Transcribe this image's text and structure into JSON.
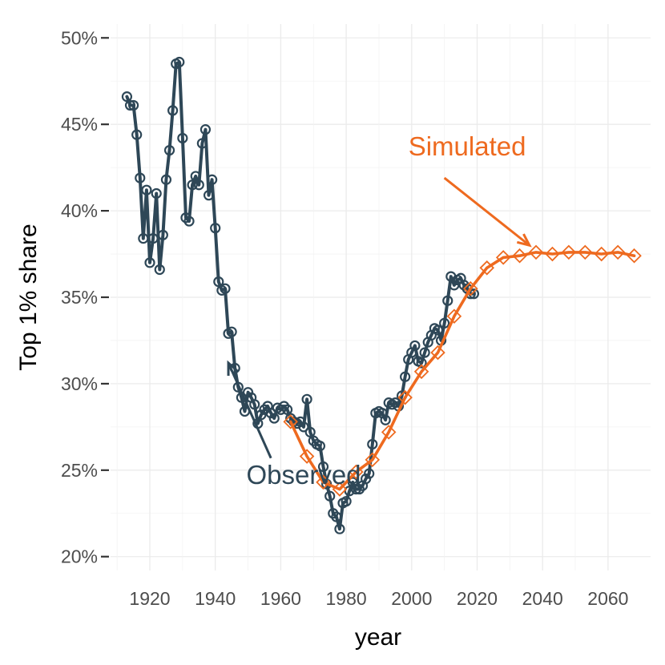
{
  "chart_data": {
    "type": "line",
    "title": "",
    "xlabel": "year",
    "ylabel": "Top 1% share",
    "xlim": [
      1908,
      2073
    ],
    "ylim": [
      19.2,
      50.8
    ],
    "x_ticks": [
      1920,
      1940,
      1960,
      1980,
      2000,
      2020,
      2040,
      2060
    ],
    "y_ticks": [
      20,
      25,
      30,
      35,
      40,
      45,
      50
    ],
    "y_tick_labels": [
      "20%",
      "25%",
      "30%",
      "35%",
      "40%",
      "45%",
      "50%"
    ],
    "x_tick_labels": [
      "1920",
      "1940",
      "1960",
      "1980",
      "2000",
      "2020",
      "2040",
      "2060"
    ],
    "grid": true,
    "legend": "none",
    "series": [
      {
        "name": "Observed",
        "color": "#2e4757",
        "marker": "circle",
        "points": [
          [
            1913,
            46.6
          ],
          [
            1914,
            46.1
          ],
          [
            1915,
            46.1
          ],
          [
            1916,
            44.4
          ],
          [
            1917,
            41.9
          ],
          [
            1918,
            38.4
          ],
          [
            1919,
            41.2
          ],
          [
            1920,
            37.0
          ],
          [
            1921,
            38.4
          ],
          [
            1922,
            41.0
          ],
          [
            1923,
            36.6
          ],
          [
            1924,
            38.6
          ],
          [
            1925,
            41.8
          ],
          [
            1926,
            43.5
          ],
          [
            1927,
            45.8
          ],
          [
            1928,
            48.5
          ],
          [
            1929,
            48.6
          ],
          [
            1930,
            44.2
          ],
          [
            1931,
            39.6
          ],
          [
            1932,
            39.4
          ],
          [
            1933,
            41.5
          ],
          [
            1934,
            42.0
          ],
          [
            1935,
            41.5
          ],
          [
            1936,
            43.9
          ],
          [
            1937,
            44.7
          ],
          [
            1938,
            40.9
          ],
          [
            1939,
            41.8
          ],
          [
            1940,
            39.0
          ],
          [
            1941,
            35.9
          ],
          [
            1942,
            35.4
          ],
          [
            1943,
            35.5
          ],
          [
            1944,
            32.9
          ],
          [
            1945,
            33.0
          ],
          [
            1946,
            30.9
          ],
          [
            1947,
            29.8
          ],
          [
            1948,
            29.2
          ],
          [
            1949,
            28.4
          ],
          [
            1950,
            29.5
          ],
          [
            1951,
            29.2
          ],
          [
            1952,
            28.8
          ],
          [
            1953,
            27.7
          ],
          [
            1954,
            28.2
          ],
          [
            1955,
            28.5
          ],
          [
            1956,
            28.7
          ],
          [
            1957,
            28.3
          ],
          [
            1958,
            28.0
          ],
          [
            1959,
            28.6
          ],
          [
            1960,
            28.5
          ],
          [
            1961,
            28.7
          ],
          [
            1962,
            28.5
          ],
          [
            1963,
            28.0
          ],
          [
            1964,
            27.8
          ],
          [
            1965,
            27.7
          ],
          [
            1966,
            27.8
          ],
          [
            1967,
            27.5
          ],
          [
            1968,
            29.1
          ],
          [
            1969,
            27.2
          ],
          [
            1970,
            26.7
          ],
          [
            1971,
            26.5
          ],
          [
            1972,
            26.4
          ],
          [
            1973,
            25.2
          ],
          [
            1974,
            24.2
          ],
          [
            1975,
            23.5
          ],
          [
            1976,
            22.5
          ],
          [
            1977,
            22.3
          ],
          [
            1978,
            21.6
          ],
          [
            1979,
            23.1
          ],
          [
            1980,
            23.2
          ],
          [
            1981,
            23.8
          ],
          [
            1982,
            24.3
          ],
          [
            1983,
            23.9
          ],
          [
            1984,
            23.9
          ],
          [
            1985,
            24.1
          ],
          [
            1986,
            24.5
          ],
          [
            1987,
            24.8
          ],
          [
            1988,
            26.5
          ],
          [
            1989,
            28.3
          ],
          [
            1990,
            28.4
          ],
          [
            1991,
            28.3
          ],
          [
            1992,
            27.9
          ],
          [
            1993,
            28.9
          ],
          [
            1994,
            28.8
          ],
          [
            1995,
            28.9
          ],
          [
            1996,
            28.7
          ],
          [
            1997,
            29.3
          ],
          [
            1998,
            30.4
          ],
          [
            1999,
            31.4
          ],
          [
            2000,
            31.8
          ],
          [
            2001,
            32.2
          ],
          [
            2002,
            31.3
          ],
          [
            2003,
            31.2
          ],
          [
            2004,
            31.8
          ],
          [
            2005,
            32.4
          ],
          [
            2006,
            32.8
          ],
          [
            2007,
            33.2
          ],
          [
            2008,
            33.1
          ],
          [
            2009,
            32.5
          ],
          [
            2010,
            33.5
          ],
          [
            2011,
            34.8
          ],
          [
            2012,
            36.2
          ],
          [
            2013,
            35.7
          ],
          [
            2014,
            36.0
          ],
          [
            2015,
            36.1
          ],
          [
            2016,
            35.7
          ],
          [
            2017,
            35.5
          ],
          [
            2018,
            35.2
          ],
          [
            2019,
            35.2
          ]
        ]
      },
      {
        "name": "Simulated",
        "color": "#ee6a1f",
        "marker": "diamond",
        "points": [
          [
            1963,
            27.8
          ],
          [
            1968,
            25.8
          ],
          [
            1973,
            24.3
          ],
          [
            1978,
            23.9
          ],
          [
            1983,
            24.9
          ],
          [
            1988,
            25.6
          ],
          [
            1993,
            27.2
          ],
          [
            1998,
            29.2
          ],
          [
            2003,
            30.7
          ],
          [
            2008,
            31.8
          ],
          [
            2013,
            33.9
          ],
          [
            2018,
            35.5
          ],
          [
            2023,
            36.7
          ],
          [
            2028,
            37.3
          ],
          [
            2033,
            37.4
          ],
          [
            2038,
            37.6
          ],
          [
            2043,
            37.5
          ],
          [
            2048,
            37.6
          ],
          [
            2053,
            37.6
          ],
          [
            2058,
            37.5
          ],
          [
            2063,
            37.6
          ],
          [
            2068,
            37.4
          ]
        ]
      }
    ],
    "annotations": [
      {
        "text": "Simulated",
        "color": "#ee6a1f",
        "label_at": [
          1999,
          43.2
        ],
        "arrow_from": [
          2010,
          41.9
        ],
        "arrow_to": [
          2036,
          38.0
        ]
      },
      {
        "text": "Observed",
        "color": "#2e4757",
        "label_at": [
          1967,
          24.2
        ],
        "arrow_from": [
          1957,
          25.7
        ],
        "arrow_to": [
          1944,
          31.2
        ]
      }
    ]
  }
}
